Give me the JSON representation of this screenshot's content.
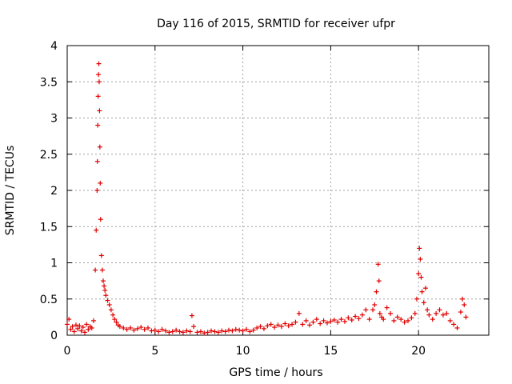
{
  "chart_data": {
    "type": "scatter",
    "title": "Day 116 of 2015, SRMTID for receiver ufpr",
    "xlabel": "GPS time / hours",
    "ylabel": "SRMTID / TECUs",
    "xlim": [
      0,
      24
    ],
    "ylim": [
      0,
      4
    ],
    "xticks": [
      0,
      5,
      10,
      15,
      20
    ],
    "xtick_labels": [
      "0",
      "5",
      "10",
      "15",
      "20"
    ],
    "yticks": [
      0,
      0.5,
      1,
      1.5,
      2,
      2.5,
      3,
      3.5,
      4
    ],
    "ytick_labels": [
      "0",
      "0.5",
      "1",
      "1.5",
      "2",
      "2.5",
      "3",
      "3.5",
      "4"
    ],
    "grid": true,
    "marker": "+",
    "series_color": "#e00000",
    "series": [
      {
        "name": "ufpr",
        "x": [
          0.0,
          0.1,
          0.2,
          0.3,
          0.4,
          0.5,
          0.6,
          0.7,
          0.8,
          0.9,
          1.0,
          1.1,
          1.2,
          1.3,
          1.4,
          1.5,
          1.6,
          1.65,
          1.7,
          1.72,
          1.74,
          1.76,
          1.78,
          1.8,
          1.82,
          1.84,
          1.86,
          1.88,
          1.9,
          1.95,
          2.0,
          2.05,
          2.1,
          2.15,
          2.2,
          2.3,
          2.4,
          2.5,
          2.6,
          2.7,
          2.8,
          2.9,
          3.0,
          3.2,
          3.4,
          3.6,
          3.8,
          4.0,
          4.2,
          4.4,
          4.6,
          4.8,
          5.0,
          5.2,
          5.4,
          5.6,
          5.8,
          6.0,
          6.2,
          6.4,
          6.6,
          6.8,
          7.0,
          7.1,
          7.2,
          7.4,
          7.6,
          7.8,
          8.0,
          8.2,
          8.4,
          8.6,
          8.8,
          9.0,
          9.2,
          9.4,
          9.6,
          9.8,
          10.0,
          10.2,
          10.4,
          10.6,
          10.8,
          11.0,
          11.2,
          11.4,
          11.6,
          11.8,
          12.0,
          12.2,
          12.4,
          12.6,
          12.8,
          13.0,
          13.2,
          13.4,
          13.6,
          13.8,
          14.0,
          14.2,
          14.4,
          14.6,
          14.8,
          15.0,
          15.2,
          15.4,
          15.6,
          15.8,
          16.0,
          16.2,
          16.4,
          16.6,
          16.8,
          17.0,
          17.2,
          17.4,
          17.5,
          17.6,
          17.7,
          17.75,
          17.8,
          17.9,
          18.0,
          18.2,
          18.4,
          18.6,
          18.8,
          19.0,
          19.2,
          19.4,
          19.6,
          19.8,
          19.9,
          20.0,
          20.05,
          20.1,
          20.15,
          20.2,
          20.3,
          20.4,
          20.5,
          20.6,
          20.8,
          21.0,
          21.2,
          21.4,
          21.6,
          21.8,
          22.0,
          22.2,
          22.4,
          22.5,
          22.6,
          22.7
        ],
        "y": [
          0.15,
          0.22,
          0.08,
          0.12,
          0.05,
          0.14,
          0.09,
          0.13,
          0.06,
          0.11,
          0.04,
          0.15,
          0.08,
          0.12,
          0.1,
          0.2,
          0.9,
          1.45,
          2.0,
          2.4,
          2.9,
          3.3,
          3.6,
          3.75,
          3.5,
          3.1,
          2.6,
          2.1,
          1.6,
          1.1,
          0.9,
          0.75,
          0.68,
          0.62,
          0.55,
          0.48,
          0.42,
          0.35,
          0.28,
          0.22,
          0.18,
          0.14,
          0.12,
          0.1,
          0.08,
          0.1,
          0.07,
          0.09,
          0.11,
          0.08,
          0.1,
          0.06,
          0.07,
          0.05,
          0.08,
          0.06,
          0.04,
          0.05,
          0.07,
          0.05,
          0.04,
          0.06,
          0.05,
          0.27,
          0.12,
          0.04,
          0.05,
          0.03,
          0.04,
          0.06,
          0.05,
          0.04,
          0.06,
          0.05,
          0.07,
          0.06,
          0.08,
          0.07,
          0.06,
          0.08,
          0.05,
          0.07,
          0.1,
          0.12,
          0.09,
          0.13,
          0.15,
          0.11,
          0.14,
          0.12,
          0.16,
          0.13,
          0.15,
          0.18,
          0.3,
          0.15,
          0.2,
          0.14,
          0.18,
          0.22,
          0.16,
          0.2,
          0.17,
          0.19,
          0.21,
          0.18,
          0.22,
          0.19,
          0.24,
          0.21,
          0.26,
          0.23,
          0.28,
          0.35,
          0.22,
          0.35,
          0.42,
          0.6,
          0.98,
          0.75,
          0.3,
          0.25,
          0.22,
          0.38,
          0.3,
          0.2,
          0.25,
          0.22,
          0.18,
          0.2,
          0.24,
          0.3,
          0.5,
          0.85,
          1.2,
          1.05,
          0.8,
          0.6,
          0.45,
          0.65,
          0.35,
          0.28,
          0.22,
          0.3,
          0.35,
          0.28,
          0.3,
          0.2,
          0.15,
          0.1,
          0.32,
          0.5,
          0.42,
          0.25
        ]
      }
    ]
  }
}
